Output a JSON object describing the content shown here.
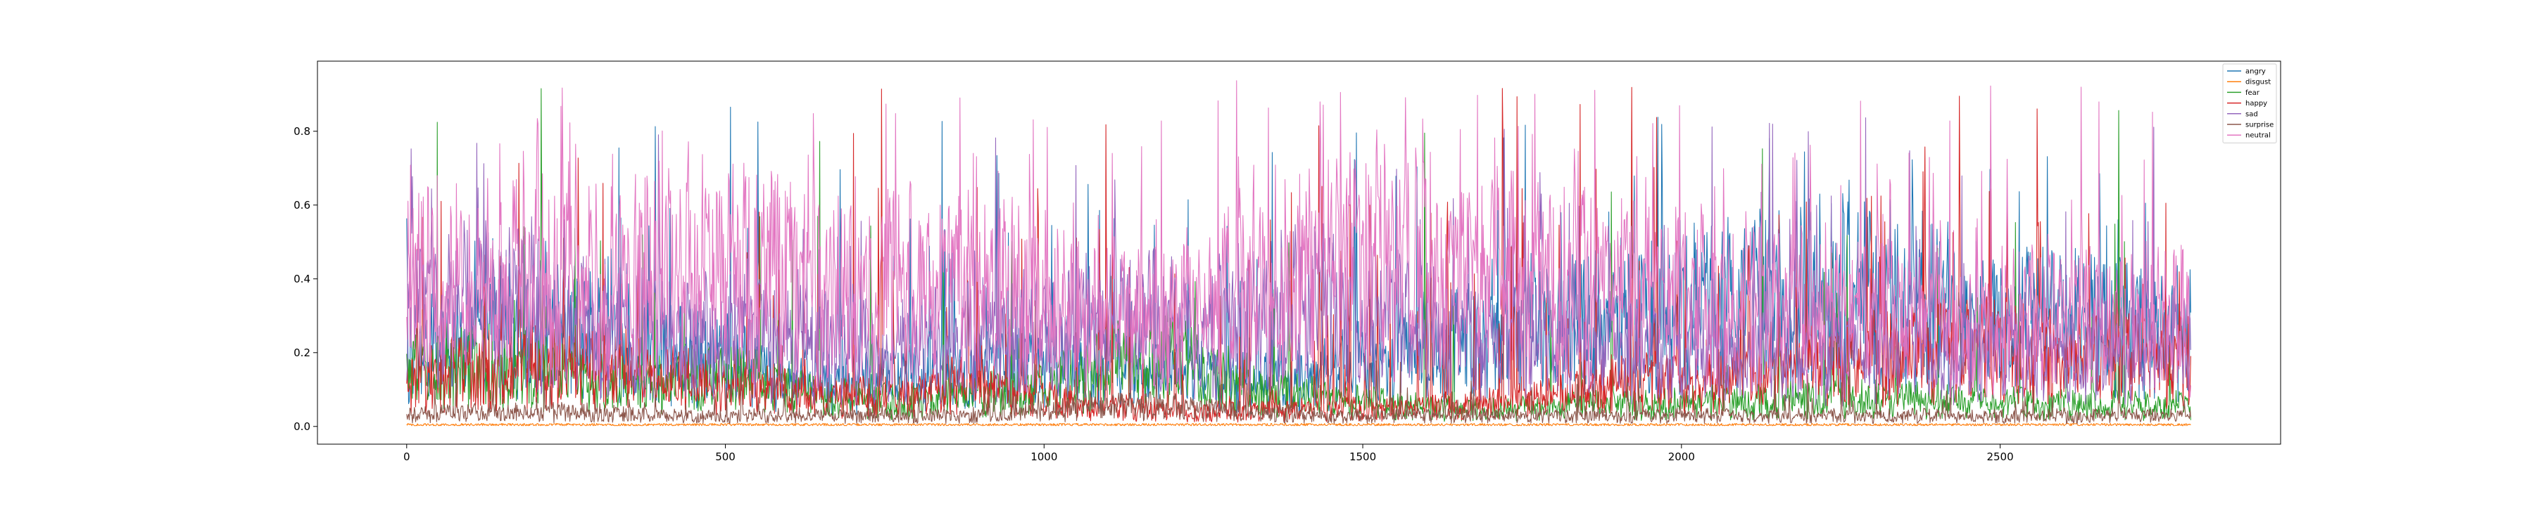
{
  "chart_data": {
    "type": "line",
    "title": "",
    "xlabel": "",
    "ylabel": "",
    "xlim": [
      -140,
      2940
    ],
    "ylim": [
      -0.048,
      0.99
    ],
    "xticks": [
      0,
      500,
      1000,
      1500,
      2000,
      2500
    ],
    "yticks": [
      0.0,
      0.2,
      0.4,
      0.6,
      0.8
    ],
    "xtick_labels": [
      "0",
      "500",
      "1000",
      "1500",
      "2000",
      "2500"
    ],
    "ytick_labels": [
      "0.0",
      "0.2",
      "0.4",
      "0.6",
      "0.8"
    ],
    "n_points": 2800,
    "x_range": [
      0,
      2799
    ],
    "grid": false,
    "legend_position": "top-right",
    "series": [
      {
        "name": "angry",
        "color": "#1f77b4",
        "profile": [
          0.2,
          0.25,
          0.28,
          0.26,
          0.22,
          0.18,
          0.15,
          0.12,
          0.14,
          0.16,
          0.18,
          0.2,
          0.17,
          0.14,
          0.12,
          0.15,
          0.2,
          0.24,
          0.28,
          0.3,
          0.32,
          0.35,
          0.38,
          0.4,
          0.38,
          0.34,
          0.3,
          0.3,
          0.28,
          0.26
        ],
        "spike_peak": 0.87,
        "spike_rate": 0.05
      },
      {
        "name": "disgust",
        "color": "#ff7f0e",
        "profile": [
          0.005,
          0.005,
          0.005,
          0.005,
          0.005,
          0.005,
          0.005,
          0.005,
          0.005,
          0.005,
          0.005,
          0.005,
          0.005,
          0.005,
          0.005,
          0.005,
          0.005,
          0.005,
          0.005,
          0.005,
          0.005,
          0.005,
          0.005,
          0.005,
          0.005,
          0.005,
          0.005,
          0.005,
          0.005,
          0.005
        ],
        "spike_peak": 0.02,
        "spike_rate": 0.0
      },
      {
        "name": "fear",
        "color": "#2ca02c",
        "profile": [
          0.15,
          0.18,
          0.16,
          0.14,
          0.12,
          0.14,
          0.12,
          0.08,
          0.07,
          0.09,
          0.1,
          0.14,
          0.2,
          0.16,
          0.1,
          0.08,
          0.06,
          0.05,
          0.05,
          0.06,
          0.06,
          0.07,
          0.07,
          0.08,
          0.08,
          0.07,
          0.07,
          0.06,
          0.06,
          0.06
        ],
        "spike_peak": 0.93,
        "spike_rate": 0.015
      },
      {
        "name": "happy",
        "color": "#d62728",
        "profile": [
          0.12,
          0.16,
          0.18,
          0.16,
          0.14,
          0.12,
          0.1,
          0.08,
          0.09,
          0.12,
          0.1,
          0.06,
          0.05,
          0.04,
          0.05,
          0.05,
          0.05,
          0.06,
          0.07,
          0.1,
          0.14,
          0.12,
          0.14,
          0.18,
          0.2,
          0.22,
          0.22,
          0.2,
          0.2,
          0.18
        ],
        "spike_peak": 0.92,
        "spike_rate": 0.07
      },
      {
        "name": "sad",
        "color": "#9467bd",
        "profile": [
          0.3,
          0.35,
          0.32,
          0.28,
          0.26,
          0.26,
          0.24,
          0.22,
          0.22,
          0.24,
          0.26,
          0.3,
          0.3,
          0.28,
          0.32,
          0.35,
          0.3,
          0.26,
          0.24,
          0.24,
          0.22,
          0.2,
          0.2,
          0.22,
          0.22,
          0.2,
          0.2,
          0.2,
          0.22,
          0.22
        ],
        "spike_peak": 0.85,
        "spike_rate": 0.04
      },
      {
        "name": "surprise",
        "color": "#8c564b",
        "profile": [
          0.03,
          0.04,
          0.04,
          0.04,
          0.03,
          0.03,
          0.03,
          0.03,
          0.03,
          0.03,
          0.04,
          0.05,
          0.06,
          0.05,
          0.04,
          0.03,
          0.03,
          0.03,
          0.03,
          0.03,
          0.03,
          0.03,
          0.03,
          0.03,
          0.03,
          0.03,
          0.03,
          0.03,
          0.03,
          0.03
        ],
        "spike_peak": 0.2,
        "spike_rate": 0.03
      },
      {
        "name": "neutral",
        "color": "#e377c2",
        "profile": [
          0.45,
          0.42,
          0.4,
          0.4,
          0.42,
          0.45,
          0.42,
          0.38,
          0.4,
          0.42,
          0.38,
          0.3,
          0.3,
          0.35,
          0.4,
          0.45,
          0.48,
          0.45,
          0.42,
          0.4,
          0.38,
          0.35,
          0.34,
          0.32,
          0.32,
          0.3,
          0.3,
          0.3,
          0.3,
          0.3
        ],
        "spike_peak": 0.94,
        "spike_rate": 0.08
      }
    ]
  }
}
